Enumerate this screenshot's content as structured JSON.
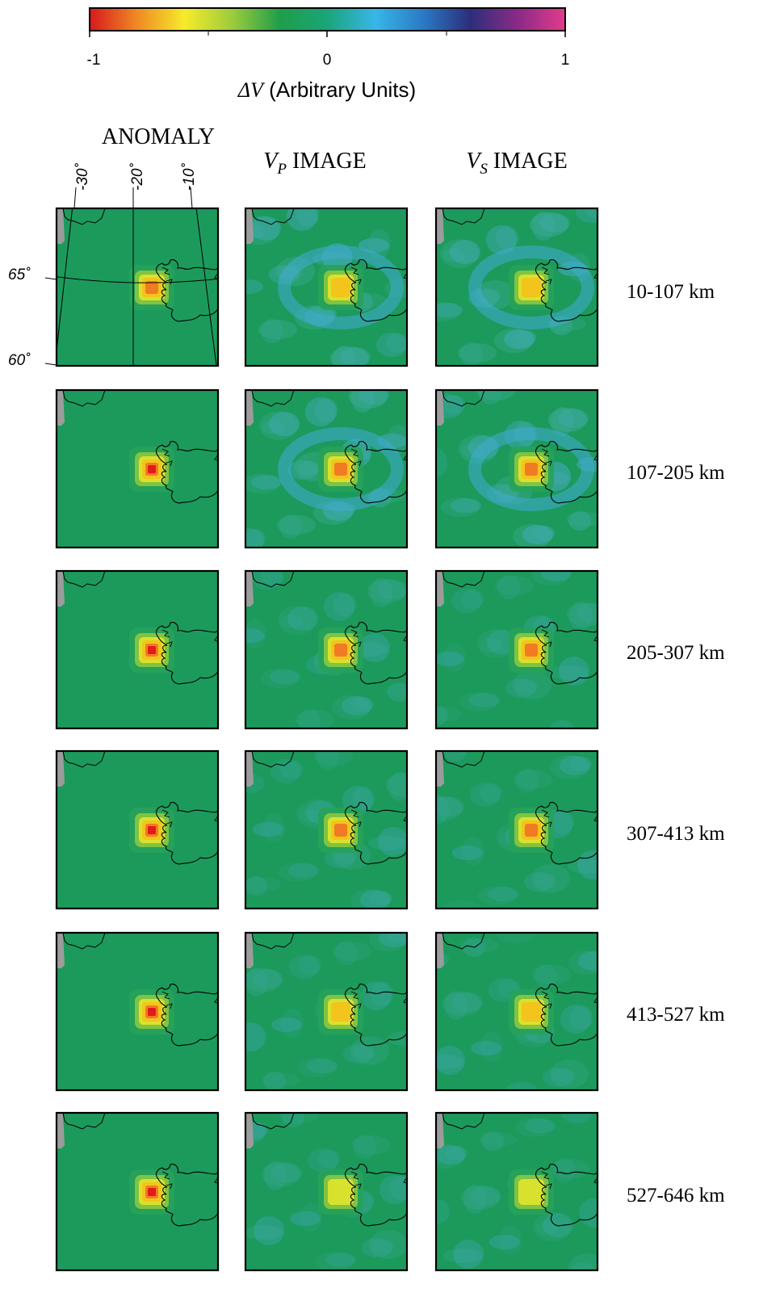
{
  "colorbar": {
    "ticks": [
      "-1",
      "0",
      "1"
    ],
    "label_symbol": "ΔV",
    "label_rest": " (Arbitrary Units)",
    "colors": [
      "#d7191c",
      "#f08a24",
      "#f6eb2a",
      "#9ccc3c",
      "#1e9e48",
      "#1aa57a",
      "#38b6e8",
      "#2a7bc4",
      "#2c2e7c",
      "#8a2a86",
      "#e23c8c"
    ]
  },
  "columns": {
    "anomaly": "ANOMALY",
    "vp_symbol": "V",
    "vp_sub": "P",
    "vp_rest": " IMAGE",
    "vs_symbol": "V",
    "vs_sub": "S",
    "vs_rest": " IMAGE"
  },
  "map_labels": {
    "longitudes": [
      "-30˚",
      "-20˚",
      "-10˚"
    ],
    "latitudes": [
      "65˚",
      "60˚"
    ]
  },
  "rows": [
    "10-107 km",
    "107-205 km",
    "205-307 km",
    "307-413 km",
    "413-527 km",
    "527-646 km"
  ],
  "anomaly_peaks": {
    "anomaly": [
      0.9,
      0.95,
      0.95,
      0.95,
      0.95,
      0.95
    ],
    "vp": [
      0.7,
      0.75,
      0.85,
      0.85,
      0.7,
      0.55
    ],
    "vs": [
      0.7,
      0.75,
      0.9,
      0.9,
      0.6,
      0.5
    ]
  },
  "style_colors": {
    "background_green": "#1c9a5c",
    "land_grey": "#9c9c9c"
  }
}
